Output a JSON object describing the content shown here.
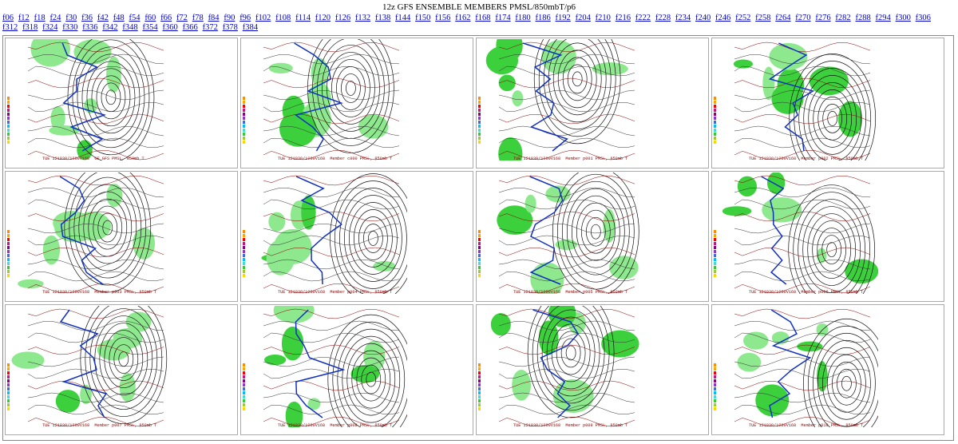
{
  "header": {
    "title": "12z GFS ENSEMBLE MEMBERS PMSL/850mbT/p6"
  },
  "links": [
    "f06",
    "f12",
    "f18",
    "f24",
    "f30",
    "f36",
    "f42",
    "f48",
    "f54",
    "f60",
    "f66",
    "f72",
    "f78",
    "f84",
    "f90",
    "f96",
    "f102",
    "f108",
    "f114",
    "f120",
    "f126",
    "f132",
    "f138",
    "f144",
    "f150",
    "f156",
    "f162",
    "f168",
    "f174",
    "f180",
    "f186",
    "f192",
    "f204",
    "f210",
    "f216",
    "f222",
    "f228",
    "f234",
    "f240",
    "f246",
    "f252",
    "f258",
    "f264",
    "f270",
    "f276",
    "f282",
    "f288",
    "f294",
    "f300",
    "f306",
    "f312",
    "f318",
    "f324",
    "f330",
    "f336",
    "f342",
    "f348",
    "f354",
    "f360",
    "f366",
    "f372",
    "f378",
    "f384"
  ],
  "panels": [
    {
      "caption": "TUE 121030/1200V168  GF GFS PMSL, 850mb T"
    },
    {
      "caption": "TUE 121030/1200V168  Member c000 PMSL, 850mb T"
    },
    {
      "caption": "TUE 121030/1200V168  Member p001 PMSL, 850mb T"
    },
    {
      "caption": "TUE 121030/1200V168  Member p002 PMSL, 850mb T"
    },
    {
      "caption": "TUE 121030/1200V168  Member p003 PMSL, 850mb T"
    },
    {
      "caption": "TUE 121030/1200V168  Member p004 PMSL, 850mb T"
    },
    {
      "caption": "TUE 121030/1200V168  Member p005 PMSL, 850mb T"
    },
    {
      "caption": "TUE 121030/1200V168  Member p006 PMSL, 850mb T"
    },
    {
      "caption": "TUE 121030/1200V168  Member p007 PMSL, 850mb T"
    },
    {
      "caption": "TUE 121030/1200V168  Member p008 PMSL, 850mb T"
    },
    {
      "caption": "TUE 121030/1200V168  Member p009 PMSL, 850mb T"
    },
    {
      "caption": "TUE 121030/1200V168  Member p010 PMSL, 850mb T"
    }
  ]
}
